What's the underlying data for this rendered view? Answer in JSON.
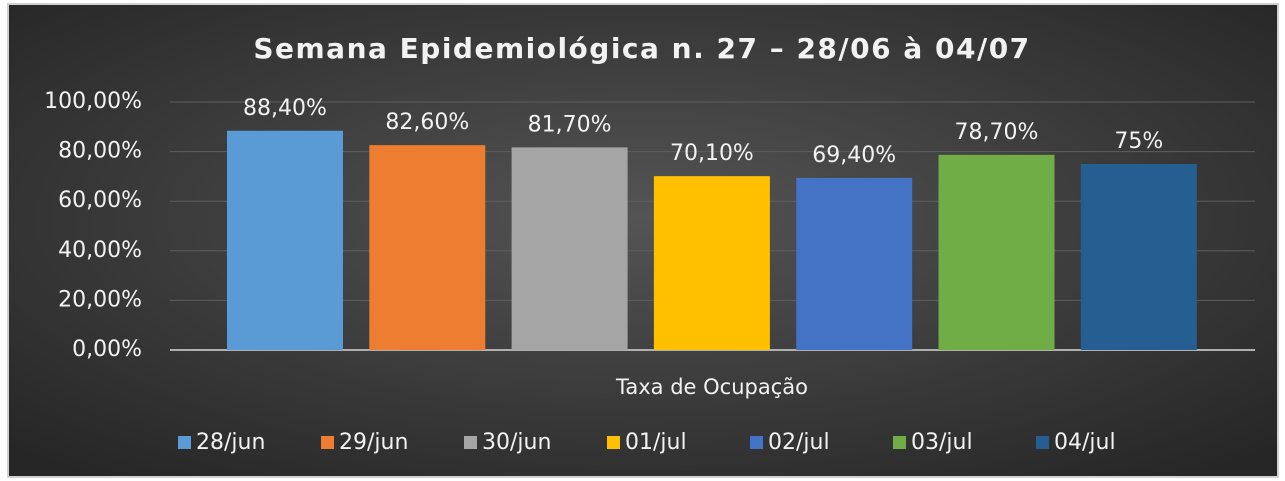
{
  "chart_data": {
    "type": "bar",
    "title": "Semana Epidemiológica n. 27 – 28/06 à 04/07",
    "categories": [
      "Taxa de Ocupação"
    ],
    "series": [
      {
        "name": "28/jun",
        "color": "#5b9bd5",
        "values": [
          88.4
        ],
        "value_labels": [
          "88,40%"
        ]
      },
      {
        "name": "29/jun",
        "color": "#ed7d31",
        "values": [
          82.6
        ],
        "value_labels": [
          "82,60%"
        ]
      },
      {
        "name": "30/jun",
        "color": "#a5a5a5",
        "values": [
          81.7
        ],
        "value_labels": [
          "81,70%"
        ]
      },
      {
        "name": "01/jul",
        "color": "#ffc000",
        "values": [
          70.1
        ],
        "value_labels": [
          "70,10%"
        ]
      },
      {
        "name": "02/jul",
        "color": "#4472c4",
        "values": [
          69.4
        ],
        "value_labels": [
          "69,40%"
        ]
      },
      {
        "name": "03/jul",
        "color": "#70ad47",
        "values": [
          78.7
        ],
        "value_labels": [
          "78,70%"
        ]
      },
      {
        "name": "04/jul",
        "color": "#255e91",
        "values": [
          75
        ],
        "value_labels": [
          "75%"
        ]
      }
    ],
    "ylim": [
      0,
      100
    ],
    "yticks": [
      {
        "value": 0,
        "label": "0,00%"
      },
      {
        "value": 20,
        "label": "20,00%"
      },
      {
        "value": 40,
        "label": "40,00%"
      },
      {
        "value": 60,
        "label": "60,00%"
      },
      {
        "value": 80,
        "label": "80,00%"
      },
      {
        "value": 100,
        "label": "100,00%"
      }
    ],
    "grid": true,
    "legend": "bottom"
  }
}
